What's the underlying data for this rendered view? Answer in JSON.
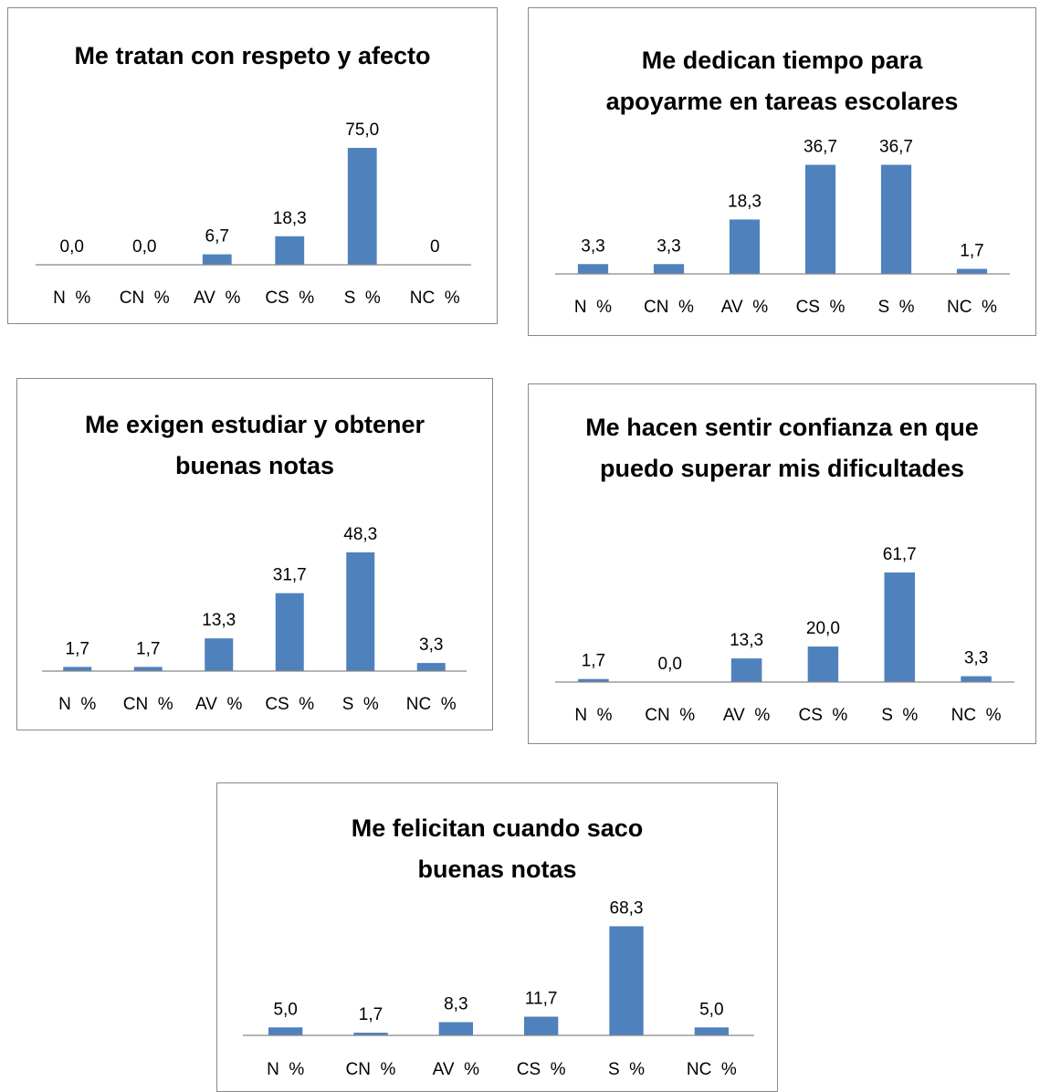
{
  "chart_data": [
    {
      "type": "bar",
      "title": "Me tratan con respeto y afecto",
      "categories": [
        "N  %",
        "CN  %",
        "AV  %",
        "CS  %",
        "S  %",
        "NC  %"
      ],
      "values": [
        0,
        0,
        6.7,
        18.3,
        75,
        0
      ],
      "value_labels": [
        "0,0",
        "0,0",
        "6,7",
        "18,3",
        "75,0",
        "0"
      ],
      "color": "#4f81bd",
      "ylim": [
        0,
        82
      ]
    },
    {
      "type": "bar",
      "title": "Me dedican tiempo para apoyarme en tareas escolares",
      "categories": [
        "N  %",
        "CN  %",
        "AV  %",
        "CS  %",
        "S  %",
        "NC  %"
      ],
      "values": [
        3.3,
        3.3,
        18.3,
        36.7,
        36.7,
        1.7
      ],
      "value_labels": [
        "3,3",
        "3,3",
        "18,3",
        "36,7",
        "36,7",
        "1,7"
      ],
      "color": "#4f81bd",
      "ylim": [
        0,
        43
      ]
    },
    {
      "type": "bar",
      "title": "Me exigen estudiar y obtener buenas notas",
      "categories": [
        "N  %",
        "CN  %",
        "AV  %",
        "CS  %",
        "S  %",
        "NC  %"
      ],
      "values": [
        1.7,
        1.7,
        13.3,
        31.7,
        48.3,
        3.3
      ],
      "value_labels": [
        "1,7",
        "1,7",
        "13,3",
        "31,7",
        "48,3",
        "3,3"
      ],
      "color": "#4f81bd",
      "ylim": [
        0,
        52
      ]
    },
    {
      "type": "bar",
      "title": "Me hacen sentir confianza en que puedo superar mis dificultades",
      "categories": [
        "N  %",
        "CN  %",
        "AV  %",
        "CS  %",
        "S  %",
        "NC  %"
      ],
      "values": [
        1.7,
        0,
        13.3,
        20,
        61.7,
        3.3
      ],
      "value_labels": [
        "1,7",
        "0,0",
        "13,3",
        "20,0",
        "61,7",
        "3,3"
      ],
      "color": "#4f81bd",
      "ylim": [
        0,
        72
      ]
    },
    {
      "type": "bar",
      "title": "Me felicitan cuando saco buenas notas",
      "categories": [
        "N  %",
        "CN  %",
        "AV  %",
        "CS  %",
        "S  %",
        "NC  %"
      ],
      "values": [
        5,
        1.7,
        8.3,
        11.7,
        68.3,
        5
      ],
      "value_labels": [
        "5,0",
        "1,7",
        "8,3",
        "11,7",
        "68,3",
        "5,0"
      ],
      "color": "#4f81bd",
      "ylim": [
        0,
        80
      ]
    }
  ]
}
